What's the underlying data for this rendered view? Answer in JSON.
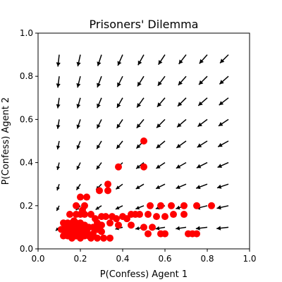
{
  "chart_data": {
    "type": "scatter",
    "title": "Prisoners' Dilemma",
    "xlabel": "P(Confess) Agent 1",
    "ylabel": "P(Confess) Agent 2",
    "xlim": [
      0.0,
      1.0
    ],
    "ylim": [
      0.0,
      1.0
    ],
    "x_ticks": [
      "0.0",
      "0.2",
      "0.4",
      "0.6",
      "0.8",
      "1.0"
    ],
    "y_ticks": [
      "0.0",
      "0.2",
      "0.4",
      "0.6",
      "0.8",
      "1.0"
    ],
    "grid": false,
    "quiver": {
      "color": "#000000",
      "grid_x": [
        0.1,
        0.2,
        0.3,
        0.4,
        0.5,
        0.6,
        0.7,
        0.8,
        0.9
      ],
      "grid_y": [
        0.1,
        0.2,
        0.3,
        0.4,
        0.5,
        0.6,
        0.7,
        0.8,
        0.9
      ],
      "direction": "toward (0, 0)"
    },
    "points": {
      "color": "#ff0000",
      "x": [
        0.5,
        0.38,
        0.5,
        0.33,
        0.29,
        0.33,
        0.2,
        0.23,
        0.18,
        0.22,
        0.53,
        0.58,
        0.63,
        0.69,
        0.75,
        0.82,
        0.69,
        0.46,
        0.15,
        0.18,
        0.2,
        0.21,
        0.22,
        0.25,
        0.27,
        0.3,
        0.32,
        0.35,
        0.37,
        0.4,
        0.42,
        0.44,
        0.48,
        0.52,
        0.56,
        0.6,
        0.64,
        0.28,
        0.3,
        0.34,
        0.38,
        0.44,
        0.5,
        0.54,
        0.12,
        0.13,
        0.14,
        0.15,
        0.16,
        0.17,
        0.18,
        0.19,
        0.2,
        0.21,
        0.22,
        0.24,
        0.26,
        0.28,
        0.3,
        0.11,
        0.13,
        0.15,
        0.17,
        0.19,
        0.21,
        0.23,
        0.16,
        0.18,
        0.2,
        0.24,
        0.26,
        0.12,
        0.14,
        0.16,
        0.18,
        0.2,
        0.22,
        0.25,
        0.28,
        0.31,
        0.34,
        0.18,
        0.17,
        0.71,
        0.73,
        0.75,
        0.58,
        0.6,
        0.52
      ],
      "y": [
        0.5,
        0.38,
        0.38,
        0.3,
        0.27,
        0.27,
        0.24,
        0.24,
        0.2,
        0.2,
        0.2,
        0.2,
        0.2,
        0.2,
        0.2,
        0.2,
        0.16,
        0.16,
        0.16,
        0.16,
        0.16,
        0.18,
        0.16,
        0.16,
        0.14,
        0.15,
        0.15,
        0.15,
        0.14,
        0.15,
        0.14,
        0.16,
        0.16,
        0.16,
        0.15,
        0.15,
        0.16,
        0.12,
        0.11,
        0.12,
        0.11,
        0.11,
        0.1,
        0.1,
        0.12,
        0.11,
        0.12,
        0.11,
        0.12,
        0.13,
        0.12,
        0.11,
        0.12,
        0.1,
        0.11,
        0.1,
        0.1,
        0.09,
        0.08,
        0.09,
        0.08,
        0.09,
        0.08,
        0.09,
        0.08,
        0.08,
        0.07,
        0.06,
        0.07,
        0.06,
        0.07,
        0.06,
        0.06,
        0.05,
        0.06,
        0.05,
        0.06,
        0.05,
        0.05,
        0.05,
        0.05,
        0.08,
        0.11,
        0.07,
        0.07,
        0.07,
        0.07,
        0.07,
        0.07
      ]
    }
  }
}
